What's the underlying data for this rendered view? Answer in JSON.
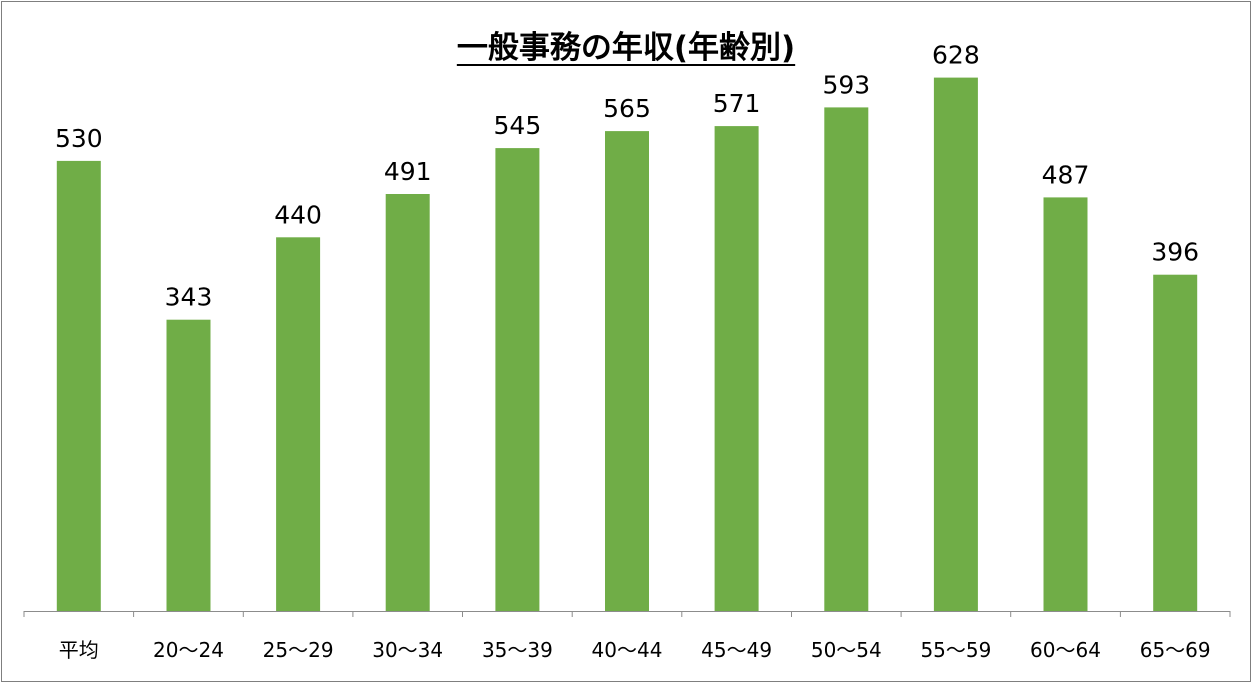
{
  "chart_data": {
    "type": "bar",
    "title": "一般事務の年収(年齢別)",
    "xlabel": "",
    "ylabel": "",
    "categories": [
      "平均",
      "20〜24",
      "25〜29",
      "30〜34",
      "35〜39",
      "40〜44",
      "45〜49",
      "50〜54",
      "55〜59",
      "60〜64",
      "65〜69"
    ],
    "values": [
      530,
      343,
      440,
      491,
      545,
      565,
      571,
      593,
      628,
      487,
      396
    ],
    "ylim": [
      0,
      710
    ],
    "bar_color": "#70ad47",
    "axis_color": "#8c8c8c",
    "grid": false,
    "legend": "none"
  }
}
